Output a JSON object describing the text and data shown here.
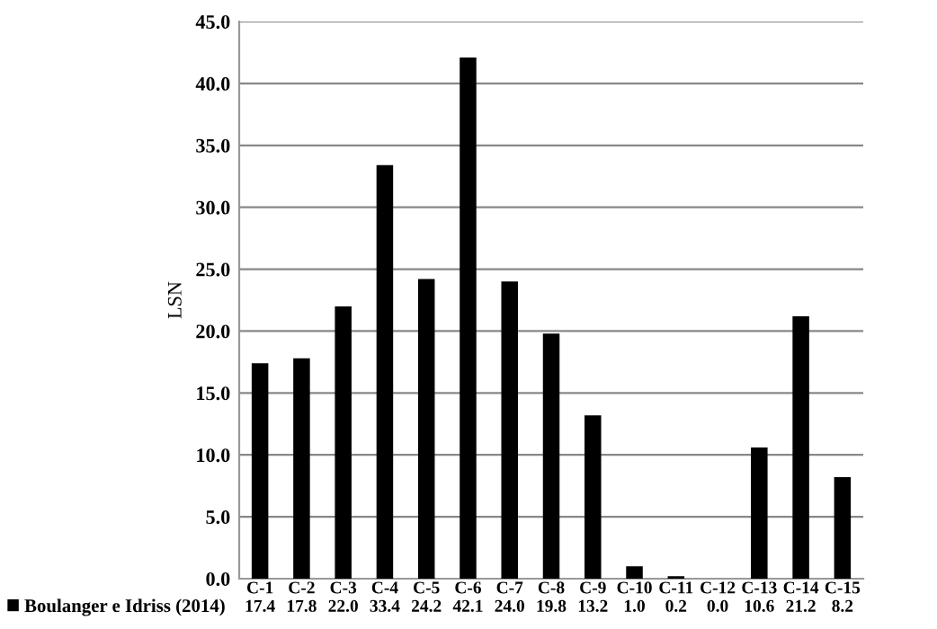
{
  "chart_data": {
    "type": "bar",
    "ylabel": "LSN",
    "categories": [
      "C-1",
      "C-2",
      "C-3",
      "C-4",
      "C-5",
      "C-6",
      "C-7",
      "C-8",
      "C-9",
      "C-10",
      "C-11",
      "C-12",
      "C-13",
      "C-14",
      "C-15"
    ],
    "series": [
      {
        "name": "Boulanger e Idriss (2014)",
        "color": "#000000",
        "values": [
          17.4,
          17.8,
          22.0,
          33.4,
          24.2,
          42.1,
          24.0,
          19.8,
          13.2,
          1.0,
          0.2,
          0.0,
          10.6,
          21.2,
          8.2
        ],
        "value_labels": [
          "17.4",
          "17.8",
          "22.0",
          "33.4",
          "24.2",
          "42.1",
          "24.0",
          "19.8",
          "13.2",
          "1.0",
          "0.2",
          "0.0",
          "10.6",
          "21.2",
          "8.2"
        ]
      }
    ],
    "ylim": [
      0,
      45
    ],
    "yticks": [
      {
        "value": 0,
        "label": "0.0"
      },
      {
        "value": 5,
        "label": "5.0"
      },
      {
        "value": 10,
        "label": "10.0"
      },
      {
        "value": 15,
        "label": "15.0"
      },
      {
        "value": 20,
        "label": "20.0"
      },
      {
        "value": 25,
        "label": "25.0"
      },
      {
        "value": 30,
        "label": "30.0"
      },
      {
        "value": 35,
        "label": "35.0"
      },
      {
        "value": 40,
        "label": "40.0"
      },
      {
        "value": 45,
        "label": "45.0"
      }
    ],
    "grid": "y",
    "legend": "bottom"
  }
}
